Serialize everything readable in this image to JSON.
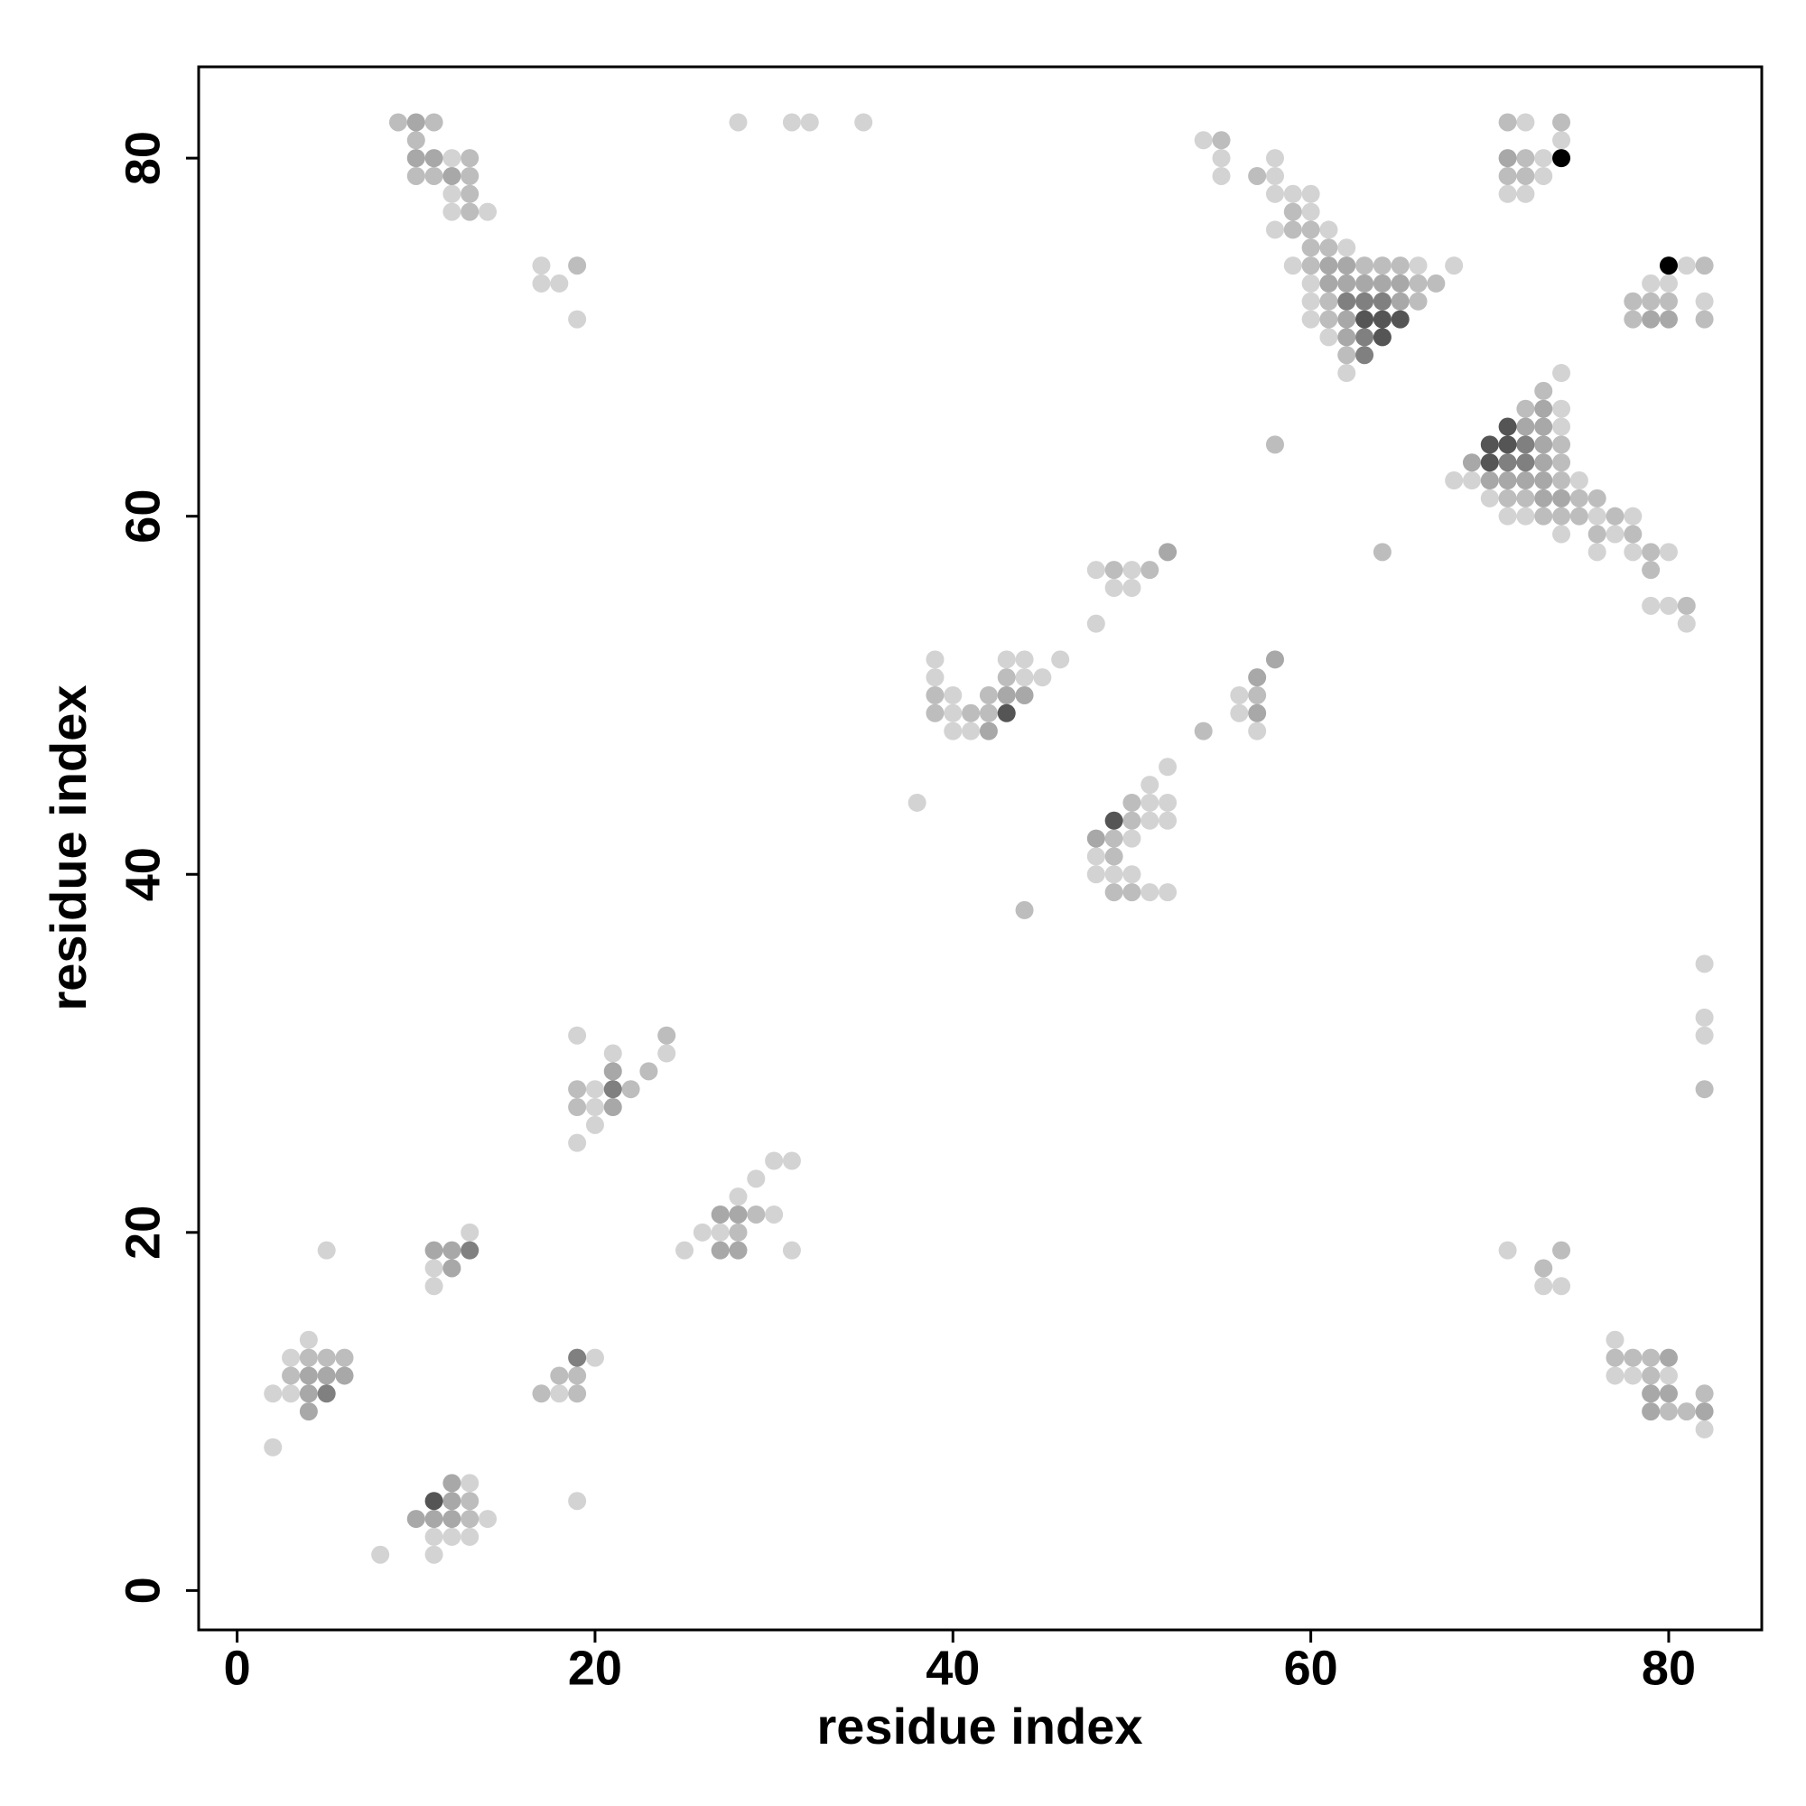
{
  "chart_data": {
    "type": "scatter",
    "xlabel": "residue index",
    "ylabel": "residue index",
    "xlim": [
      -2.15,
      85.2
    ],
    "ylim": [
      -2.2,
      85.1
    ],
    "xticks": [
      0,
      20,
      40,
      60,
      80
    ],
    "yticks": [
      0,
      20,
      40,
      60,
      80
    ],
    "grid": false,
    "series": [
      {
        "color": "#d3d3d3",
        "x": [
          12,
          12,
          12,
          14,
          17,
          17,
          18,
          19,
          28,
          31,
          32,
          35,
          54,
          55,
          55,
          58,
          58,
          58,
          59,
          60,
          60,
          58,
          61,
          62,
          59,
          66,
          68,
          60,
          60,
          60,
          61,
          62,
          72,
          74,
          73,
          73,
          71,
          72,
          81,
          79,
          80,
          82,
          74,
          74,
          74,
          68,
          69,
          75,
          70,
          71,
          72,
          76,
          78,
          74,
          77,
          76,
          78,
          80,
          79,
          80,
          81,
          48,
          50,
          49,
          50,
          48,
          39,
          43,
          44,
          46,
          39,
          44,
          45,
          40,
          40,
          40,
          41,
          38,
          56,
          56,
          57,
          52,
          51,
          51,
          52,
          51,
          52,
          50,
          48,
          48,
          49,
          50,
          51,
          52,
          82,
          82,
          82,
          19,
          21,
          24,
          20,
          20,
          20,
          19,
          30,
          31,
          29,
          28,
          30,
          26,
          27,
          25,
          31,
          5,
          13,
          11,
          11,
          71,
          73,
          74,
          4,
          3,
          2,
          3,
          2,
          20,
          18,
          77,
          77,
          78,
          80,
          82,
          13,
          14,
          11,
          12,
          13,
          8,
          11,
          19
        ],
        "values": [
          80,
          78,
          77,
          77,
          74,
          73,
          73,
          71,
          82,
          82,
          82,
          82,
          81,
          80,
          79,
          79,
          80,
          78,
          78,
          78,
          77,
          76,
          76,
          75,
          74,
          74,
          74,
          73,
          72,
          71,
          70,
          68,
          82,
          81,
          80,
          79,
          78,
          78,
          74,
          73,
          73,
          72,
          68,
          66,
          65,
          62,
          62,
          62,
          61,
          60,
          60,
          60,
          60,
          59,
          59,
          58,
          58,
          58,
          55,
          55,
          54,
          57,
          57,
          56,
          56,
          54,
          52,
          52,
          52,
          52,
          51,
          51,
          51,
          50,
          49,
          48,
          48,
          44,
          50,
          49,
          48,
          46,
          45,
          44,
          44,
          43,
          43,
          42,
          41,
          40,
          40,
          40,
          39,
          39,
          35,
          32,
          31,
          31,
          30,
          30,
          28,
          27,
          26,
          25,
          24,
          24,
          23,
          22,
          21,
          20,
          20,
          19,
          19,
          19,
          20,
          18,
          17,
          19,
          17,
          17,
          14,
          13,
          11,
          11,
          8,
          13,
          11,
          14,
          12,
          12,
          12,
          9,
          6,
          4,
          3,
          3,
          3,
          2,
          2,
          5
        ]
      },
      {
        "color": "#bdbdbd",
        "x": [
          9,
          11,
          10,
          13,
          10,
          11,
          13,
          13,
          13,
          19,
          55,
          57,
          59,
          59,
          60,
          60,
          61,
          60,
          63,
          64,
          65,
          66,
          67,
          61,
          66,
          61,
          62,
          71,
          74,
          72,
          71,
          72,
          82,
          78,
          79,
          80,
          78,
          82,
          58,
          73,
          72,
          74,
          74,
          74,
          71,
          72,
          75,
          76,
          73,
          74,
          75,
          77,
          76,
          78,
          79,
          79,
          81,
          64,
          49,
          51,
          43,
          39,
          42,
          39,
          41,
          42,
          57,
          54,
          50,
          50,
          49,
          49,
          49,
          50,
          44,
          82,
          24,
          23,
          19,
          22,
          19,
          29,
          28,
          74,
          73,
          4,
          5,
          6,
          3,
          18,
          19,
          17,
          19,
          77,
          78,
          79,
          79,
          82,
          80,
          81,
          13,
          13
        ],
        "values": [
          82,
          82,
          81,
          80,
          79,
          79,
          79,
          78,
          77,
          74,
          81,
          79,
          77,
          76,
          76,
          75,
          75,
          74,
          74,
          74,
          74,
          73,
          73,
          72,
          72,
          71,
          69,
          82,
          82,
          80,
          79,
          79,
          74,
          72,
          72,
          72,
          71,
          71,
          64,
          67,
          66,
          64,
          63,
          62,
          61,
          61,
          61,
          61,
          60,
          60,
          60,
          60,
          59,
          59,
          58,
          57,
          55,
          58,
          57,
          57,
          51,
          50,
          50,
          49,
          49,
          49,
          50,
          48,
          44,
          43,
          42,
          41,
          39,
          39,
          38,
          28,
          31,
          29,
          28,
          28,
          27,
          21,
          20,
          19,
          18,
          13,
          13,
          13,
          12,
          12,
          12,
          11,
          11,
          13,
          13,
          13,
          12,
          11,
          10,
          10,
          5,
          4
        ]
      },
      {
        "color": "#a8a8a8",
        "x": [
          10,
          10,
          11,
          12,
          61,
          62,
          61,
          62,
          63,
          64,
          65,
          65,
          62,
          62,
          71,
          79,
          80,
          73,
          72,
          73,
          73,
          69,
          73,
          70,
          71,
          72,
          73,
          73,
          74,
          52,
          43,
          44,
          42,
          58,
          57,
          57,
          48,
          21,
          21,
          27,
          28,
          27,
          28,
          11,
          12,
          12,
          4,
          5,
          6,
          4,
          4,
          80,
          79,
          80,
          79,
          82,
          12,
          12,
          10,
          11,
          12
        ],
        "values": [
          82,
          80,
          80,
          79,
          74,
          74,
          73,
          73,
          73,
          73,
          73,
          72,
          71,
          70,
          80,
          71,
          71,
          66,
          65,
          65,
          64,
          63,
          63,
          62,
          62,
          62,
          62,
          61,
          61,
          58,
          50,
          50,
          48,
          52,
          51,
          49,
          42,
          29,
          27,
          21,
          21,
          19,
          19,
          19,
          19,
          18,
          12,
          12,
          12,
          11,
          10,
          13,
          11,
          11,
          10,
          10,
          6,
          5,
          4,
          4,
          4
        ]
      },
      {
        "color": "#808080",
        "x": [
          62,
          63,
          64,
          63,
          63,
          72,
          71,
          72,
          21,
          13,
          5,
          19
        ],
        "values": [
          72,
          72,
          72,
          70,
          69,
          64,
          63,
          63,
          28,
          19,
          11,
          13
        ]
      },
      {
        "color": "#555555",
        "x": [
          63,
          64,
          65,
          64,
          71,
          70,
          71,
          70,
          43,
          49,
          11
        ],
        "values": [
          71,
          71,
          71,
          70,
          65,
          64,
          64,
          63,
          49,
          43,
          5
        ]
      },
      {
        "color": "#000000",
        "x": [
          74,
          80
        ],
        "values": [
          80,
          74
        ]
      }
    ]
  }
}
